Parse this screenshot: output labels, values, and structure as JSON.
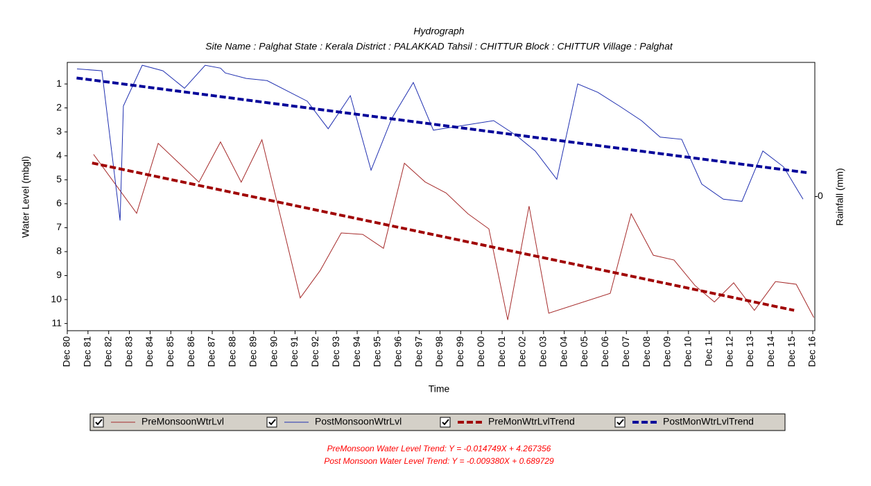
{
  "chart_data": {
    "type": "line",
    "title": "Hydrograph",
    "subtitle": "Site Name : Palghat  State : Kerala District : PALAKKAD  Tahsil : CHITTUR  Block : CHITTUR Village : Palghat",
    "xlabel": "Time",
    "ylabel": "Water Level (mbgl)",
    "y2label": "Rainfall (mm)",
    "y_inverted": true,
    "legend": "bottom",
    "xlim": [
      1980.95,
      2017.05
    ],
    "xticks": [
      {
        "value": 1980.95,
        "label": "Dec 80"
      },
      {
        "value": 1981.95,
        "label": "Dec 81"
      },
      {
        "value": 1982.95,
        "label": "Dec 82"
      },
      {
        "value": 1983.95,
        "label": "Dec 83"
      },
      {
        "value": 1984.95,
        "label": "Dec 84"
      },
      {
        "value": 1985.95,
        "label": "Dec 85"
      },
      {
        "value": 1986.95,
        "label": "Dec 86"
      },
      {
        "value": 1987.95,
        "label": "Dec 87"
      },
      {
        "value": 1988.95,
        "label": "Dec 88"
      },
      {
        "value": 1989.95,
        "label": "Dec 89"
      },
      {
        "value": 1990.95,
        "label": "Dec 90"
      },
      {
        "value": 1991.95,
        "label": "Dec 91"
      },
      {
        "value": 1992.95,
        "label": "Dec 92"
      },
      {
        "value": 1993.95,
        "label": "Dec 93"
      },
      {
        "value": 1994.95,
        "label": "Dec 94"
      },
      {
        "value": 1995.95,
        "label": "Dec 95"
      },
      {
        "value": 1996.95,
        "label": "Dec 96"
      },
      {
        "value": 1997.95,
        "label": "Dec 97"
      },
      {
        "value": 1998.95,
        "label": "Dec 98"
      },
      {
        "value": 1999.95,
        "label": "Dec 99"
      },
      {
        "value": 2000.95,
        "label": "Dec 00"
      },
      {
        "value": 2001.95,
        "label": "Dec 01"
      },
      {
        "value": 2002.95,
        "label": "Dec 02"
      },
      {
        "value": 2003.95,
        "label": "Dec 03"
      },
      {
        "value": 2004.95,
        "label": "Dec 04"
      },
      {
        "value": 2005.95,
        "label": "Dec 05"
      },
      {
        "value": 2006.95,
        "label": "Dec 06"
      },
      {
        "value": 2007.95,
        "label": "Dec 07"
      },
      {
        "value": 2008.95,
        "label": "Dec 08"
      },
      {
        "value": 2009.95,
        "label": "Dec 09"
      },
      {
        "value": 2010.95,
        "label": "Dec 10"
      },
      {
        "value": 2011.95,
        "label": "Dec 11"
      },
      {
        "value": 2012.95,
        "label": "Dec 12"
      },
      {
        "value": 2013.95,
        "label": "Dec 13"
      },
      {
        "value": 2014.95,
        "label": "Dec 14"
      },
      {
        "value": 2015.95,
        "label": "Dec 15"
      },
      {
        "value": 2016.95,
        "label": "Dec 16"
      }
    ],
    "ylim": [
      0.1,
      11.3
    ],
    "yticks": [
      1,
      2,
      3,
      4,
      5,
      6,
      7,
      8,
      9,
      10,
      11
    ],
    "y2lim": [
      -1,
      1
    ],
    "y2ticks": [
      0
    ],
    "series": [
      {
        "name": "PreMonsoonWtrLvl",
        "color": "#a52a2a",
        "style": "solid",
        "width": 1,
        "x": [
          1982.22,
          1984.3,
          1985.34,
          1986.34,
          1987.31,
          1988.35,
          1989.35,
          1990.35,
          1992.2,
          1993.17,
          1994.18,
          1995.22,
          1996.22,
          1997.23,
          1998.23,
          1999.24,
          2000.3,
          2001.31,
          2002.22,
          2003.25,
          2004.2,
          2007.17,
          2008.18,
          2009.25,
          2010.25,
          2011.26,
          2012.2,
          2013.13,
          2014.13,
          2015.15,
          2016.15,
          2017.0
        ],
        "values": [
          3.94,
          6.4,
          3.48,
          4.3,
          5.1,
          3.42,
          5.1,
          3.33,
          9.93,
          8.78,
          7.22,
          7.28,
          7.86,
          4.31,
          5.09,
          5.55,
          6.42,
          7.05,
          10.85,
          6.1,
          10.57,
          9.74,
          6.42,
          8.15,
          8.35,
          9.41,
          10.1,
          9.3,
          10.45,
          9.25,
          9.36,
          10.75
        ]
      },
      {
        "name": "PostMonsoonWtrLvl",
        "color": "#1f2fb0",
        "style": "solid",
        "width": 1,
        "x": [
          1981.42,
          1982.62,
          1983.5,
          1983.66,
          1984.57,
          1985.57,
          1986.61,
          1987.61,
          1988.35,
          1988.58,
          1989.59,
          1990.6,
          1992.54,
          1993.55,
          1994.62,
          1995.62,
          1996.62,
          1997.66,
          1998.63,
          1999.64,
          2001.54,
          2002.65,
          2003.55,
          2004.59,
          2005.6,
          2006.57,
          2007.61,
          2008.68,
          2009.58,
          2010.62,
          2011.59,
          2012.63,
          2013.53,
          2014.54,
          2015.54,
          2016.48
        ],
        "values": [
          0.37,
          0.45,
          6.7,
          1.92,
          0.22,
          0.45,
          1.18,
          0.22,
          0.34,
          0.54,
          0.77,
          0.86,
          1.72,
          2.87,
          1.49,
          4.6,
          2.44,
          0.94,
          2.93,
          2.79,
          2.53,
          3.16,
          3.8,
          4.98,
          1.0,
          1.35,
          1.92,
          2.53,
          3.22,
          3.31,
          5.18,
          5.81,
          5.9,
          3.8,
          4.46,
          5.81
        ]
      },
      {
        "name": "PreMonWtrLvlTrend",
        "color": "#a00000",
        "style": "dashed",
        "width": 4,
        "x": [
          1982.15,
          2016.05
        ],
        "values": [
          4.3,
          10.45
        ]
      },
      {
        "name": "PostMonWtrLvlTrend",
        "color": "#000099",
        "style": "dashed",
        "width": 4,
        "x": [
          1981.4,
          2016.65
        ],
        "values": [
          0.75,
          4.7
        ]
      }
    ],
    "annotations": [
      "PreMonsoon Water Level Trend: Y = -0.014749X + 4.267356",
      "Post Monsoon Water Level Trend: Y = -0.009380X + 0.689729"
    ]
  }
}
